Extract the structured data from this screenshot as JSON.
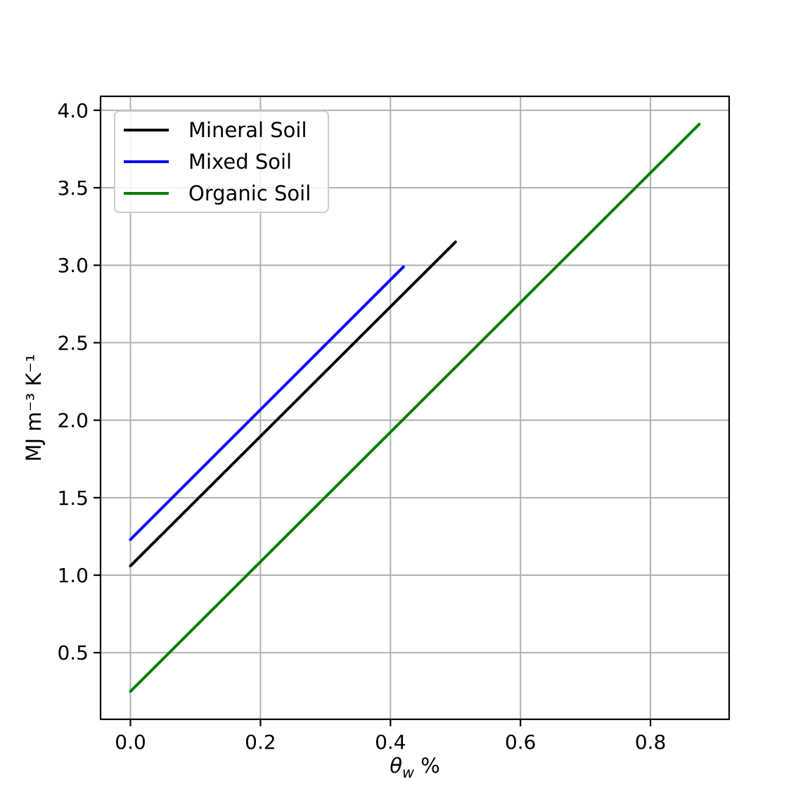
{
  "chart_data": {
    "type": "line",
    "title": "",
    "xlabel": {
      "symbol": "θ",
      "subscript": "w",
      "suffix": " %"
    },
    "ylabel": "MJ m⁻³ K⁻¹",
    "xlim": [
      -0.046,
      0.921
    ],
    "ylim": [
      0.07,
      4.09
    ],
    "xticks": [
      0.0,
      0.2,
      0.4,
      0.6,
      0.8
    ],
    "yticks": [
      0.5,
      1.0,
      1.5,
      2.0,
      2.5,
      3.0,
      3.5,
      4.0
    ],
    "grid": true,
    "grid_color": "#b0b0b0",
    "axis_color": "#000000",
    "background_color": "#ffffff",
    "legend_position": "upper left",
    "series": [
      {
        "name": "Mineral Soil",
        "color": "#000000",
        "x": [
          0.0,
          0.5
        ],
        "y": [
          1.06,
          3.15
        ]
      },
      {
        "name": "Mixed Soil",
        "color": "#0000ff",
        "x": [
          0.0,
          0.42
        ],
        "y": [
          1.23,
          2.99
        ]
      },
      {
        "name": "Organic Soil",
        "color": "#008000",
        "x": [
          0.0,
          0.875
        ],
        "y": [
          0.25,
          3.91
        ]
      }
    ]
  }
}
